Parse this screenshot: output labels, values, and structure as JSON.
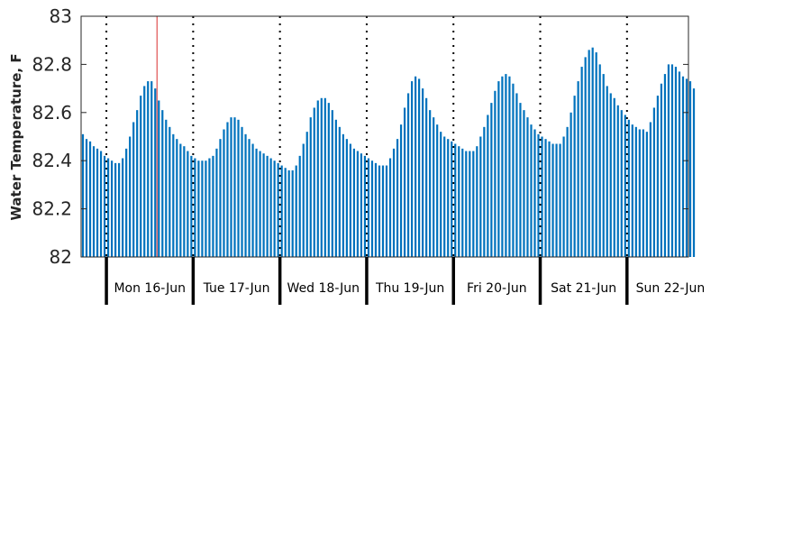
{
  "chart_data": {
    "type": "bar",
    "title": "",
    "xlabel": "",
    "ylabel": "Water Temperature, F",
    "ylim": [
      82,
      83
    ],
    "yticks": [
      82,
      82.2,
      82.4,
      82.6,
      82.8,
      83
    ],
    "ytick_labels": [
      "82",
      "82.2",
      "82.4",
      "82.6",
      "82.8",
      "83"
    ],
    "bar_color": "#0072bd",
    "day_labels": [
      "Mon 16-Jun",
      "Tue 17-Jun",
      "Wed 18-Jun",
      "Thu 19-Jun",
      "Fri 20-Jun",
      "Sat 21-Jun",
      "Sun 22-Jun"
    ],
    "x_start_hour": -7,
    "x_end_hour": 161,
    "now_marker_hour": 14,
    "now_marker_color": "#e05050",
    "grid": false,
    "values": [
      82.51,
      82.49,
      82.48,
      82.46,
      82.45,
      82.44,
      82.42,
      82.41,
      82.4,
      82.39,
      82.39,
      82.41,
      82.45,
      82.5,
      82.56,
      82.61,
      82.67,
      82.71,
      82.73,
      82.73,
      82.7,
      82.65,
      82.61,
      82.57,
      82.54,
      82.51,
      82.49,
      82.47,
      82.46,
      82.44,
      82.42,
      82.41,
      82.4,
      82.4,
      82.4,
      82.41,
      82.42,
      82.45,
      82.49,
      82.53,
      82.56,
      82.58,
      82.58,
      82.57,
      82.54,
      82.51,
      82.49,
      82.47,
      82.45,
      82.44,
      82.43,
      82.42,
      82.41,
      82.4,
      82.39,
      82.38,
      82.37,
      82.36,
      82.36,
      82.38,
      82.42,
      82.47,
      82.52,
      82.58,
      82.62,
      82.65,
      82.66,
      82.66,
      82.64,
      82.61,
      82.57,
      82.54,
      82.51,
      82.49,
      82.47,
      82.45,
      82.44,
      82.43,
      82.42,
      82.41,
      82.4,
      82.39,
      82.38,
      82.38,
      82.38,
      82.41,
      82.45,
      82.49,
      82.55,
      82.62,
      82.68,
      82.73,
      82.75,
      82.74,
      82.7,
      82.66,
      82.61,
      82.58,
      82.55,
      82.52,
      82.5,
      82.49,
      82.48,
      82.47,
      82.46,
      82.45,
      82.44,
      82.44,
      82.44,
      82.46,
      82.5,
      82.54,
      82.59,
      82.64,
      82.69,
      82.73,
      82.75,
      82.76,
      82.75,
      82.72,
      82.68,
      82.64,
      82.61,
      82.58,
      82.55,
      82.53,
      82.51,
      82.5,
      82.49,
      82.48,
      82.47,
      82.47,
      82.47,
      82.5,
      82.54,
      82.6,
      82.67,
      82.73,
      82.79,
      82.83,
      82.86,
      82.87,
      82.85,
      82.8,
      82.76,
      82.71,
      82.68,
      82.66,
      82.63,
      82.61,
      82.59,
      82.57,
      82.55,
      82.54,
      82.53,
      82.53,
      82.52,
      82.56,
      82.62,
      82.67,
      82.72,
      82.76,
      82.8,
      82.8,
      82.79,
      82.77,
      82.75,
      82.74,
      82.73,
      82.7
    ]
  }
}
